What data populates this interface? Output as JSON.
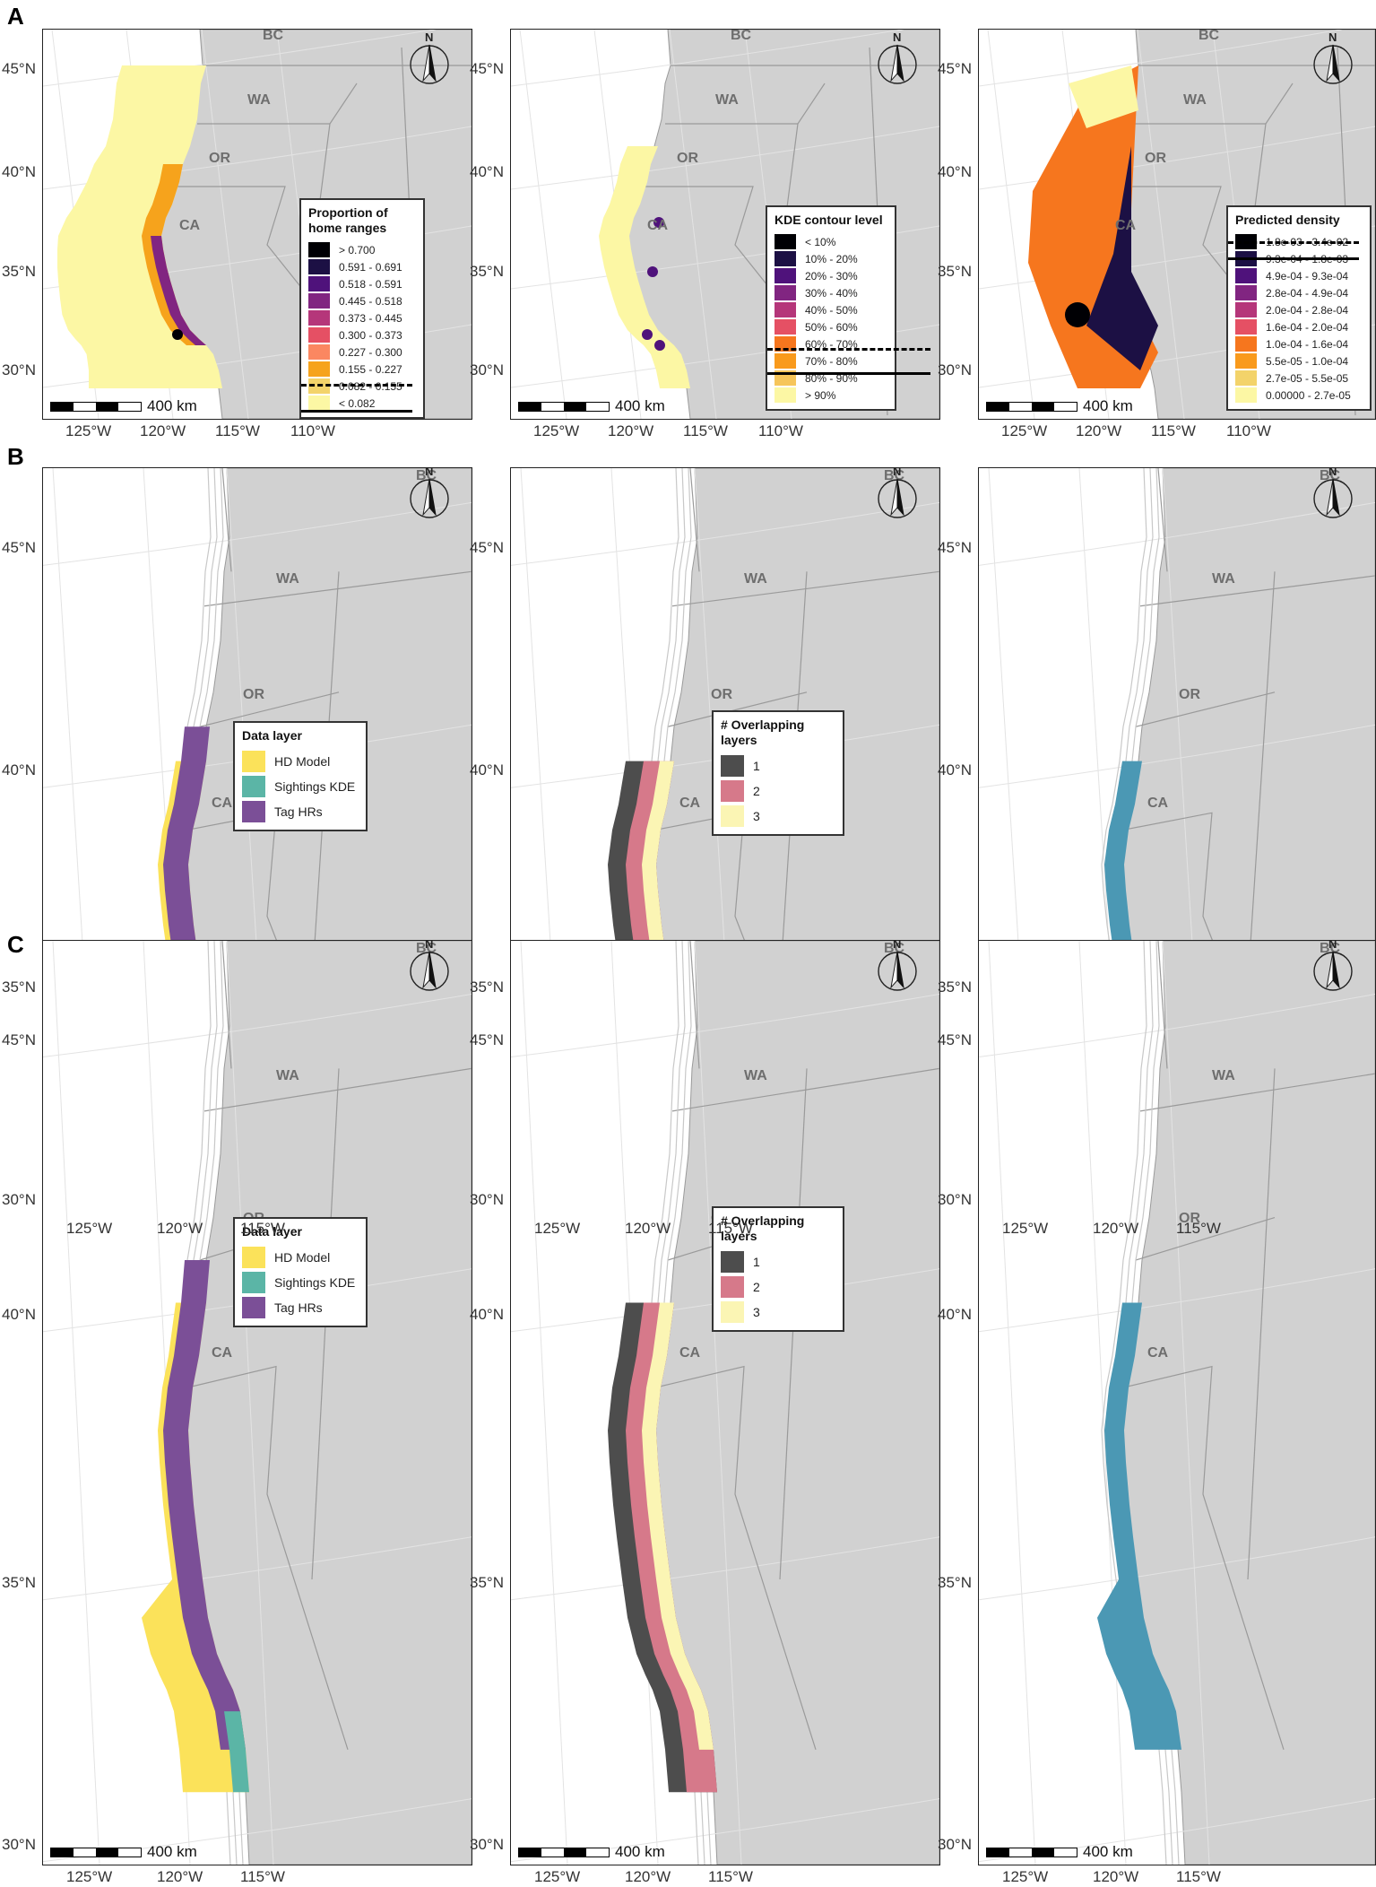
{
  "rows": [
    {
      "label": "A"
    },
    {
      "label": "B"
    },
    {
      "label": "C"
    }
  ],
  "axis": {
    "lat_labels": [
      "45°N",
      "40°N",
      "35°N",
      "30°N"
    ],
    "lon_labels_row_a": [
      "125°W",
      "120°W",
      "115°W",
      "110°W"
    ],
    "lon_labels_rows_bc": [
      "125°W",
      "120°W",
      "115°W"
    ]
  },
  "states": {
    "bc": "BC",
    "wa": "WA",
    "or": "OR",
    "ca": "CA"
  },
  "north_arrow": {
    "letter": "N"
  },
  "scale_bar": {
    "label": "400 km"
  },
  "legends": {
    "home_ranges": {
      "title": "Proportion of home ranges",
      "items": [
        {
          "label": "> 0.700",
          "color": "#000004"
        },
        {
          "label": "0.591 - 0.691",
          "color": "#1c1044"
        },
        {
          "label": "0.518 - 0.591",
          "color": "#4f127b"
        },
        {
          "label": "0.445 - 0.518",
          "color": "#812581"
        },
        {
          "label": "0.373 - 0.445",
          "color": "#b5367a"
        },
        {
          "label": "0.300 - 0.373",
          "color": "#e55064"
        },
        {
          "label": "0.227 - 0.300",
          "color": "#fb8761"
        },
        {
          "label": "0.155 - 0.227",
          "color": "#f6a31c"
        },
        {
          "label": "0.082 - 0.155",
          "color": "#f3d36a"
        },
        {
          "label": "< 0.082",
          "color": "#fcf7a4"
        }
      ]
    },
    "kde": {
      "title": "KDE contour level",
      "items": [
        {
          "label": "< 10%",
          "color": "#000004"
        },
        {
          "label": "10% - 20%",
          "color": "#1c1044"
        },
        {
          "label": "20% - 30%",
          "color": "#4f127b"
        },
        {
          "label": "30% - 40%",
          "color": "#812581"
        },
        {
          "label": "40% - 50%",
          "color": "#b5367a"
        },
        {
          "label": "50% - 60%",
          "color": "#e55064"
        },
        {
          "label": "60% - 70%",
          "color": "#f6761e"
        },
        {
          "label": "70% - 80%",
          "color": "#f99a1c"
        },
        {
          "label": "80% - 90%",
          "color": "#f6c55a"
        },
        {
          "label": "> 90%",
          "color": "#fcf7a4"
        }
      ]
    },
    "density": {
      "title": "Predicted density",
      "items": [
        {
          "label": "1.8e-03 - 3.4e-02",
          "color": "#000004"
        },
        {
          "label": "9.3e-04 - 1.8e-03",
          "color": "#1c1044"
        },
        {
          "label": "4.9e-04 - 9.3e-04",
          "color": "#4f127b"
        },
        {
          "label": "2.8e-04 - 4.9e-04",
          "color": "#812581"
        },
        {
          "label": "2.0e-04 - 2.8e-04",
          "color": "#b5367a"
        },
        {
          "label": "1.6e-04 - 2.0e-04",
          "color": "#e55064"
        },
        {
          "label": "1.0e-04 - 1.6e-04",
          "color": "#f6761e"
        },
        {
          "label": "5.5e-05 - 1.0e-04",
          "color": "#f99a1c"
        },
        {
          "label": "2.7e-05 - 5.5e-05",
          "color": "#f3d36a"
        },
        {
          "label": "0.00000 - 2.7e-05",
          "color": "#fcf7a4"
        }
      ]
    },
    "data_layer": {
      "title": "Data layer",
      "items": [
        {
          "label": "HD Model",
          "color": "#fbe25a"
        },
        {
          "label": "Sightings KDE",
          "color": "#5bb5a6"
        },
        {
          "label": "Tag HRs",
          "color": "#7b4f97"
        }
      ]
    },
    "overlap": {
      "title": "# Overlapping layers",
      "items": [
        {
          "label": "1",
          "color": "#4d4d4d"
        },
        {
          "label": "2",
          "color": "#d6798a"
        },
        {
          "label": "3",
          "color": "#fbf5b4"
        }
      ]
    }
  },
  "colors": {
    "land": "#d1d1d1",
    "land_border": "#9a9a9a",
    "ocean": "#ffffff",
    "bathy": "#c8c8c8",
    "consensus_blue": "#4b98b4"
  }
}
